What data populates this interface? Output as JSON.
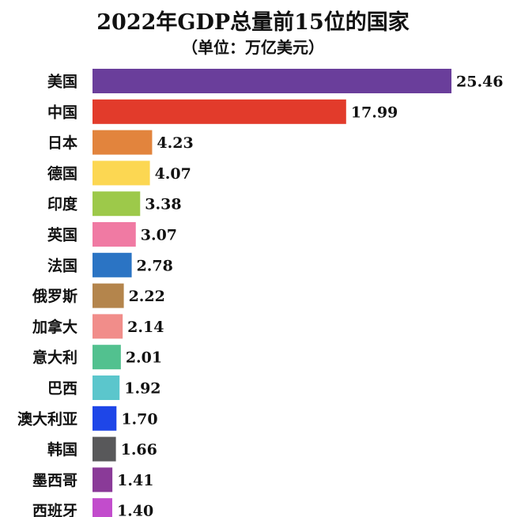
{
  "chart_data": {
    "type": "bar",
    "orientation": "horizontal",
    "title": "2022年GDP总量前15位的国家",
    "subtitle": "（单位：万亿美元）",
    "categories": [
      "美国",
      "中国",
      "日本",
      "德国",
      "印度",
      "英国",
      "法国",
      "俄罗斯",
      "加拿大",
      "意大利",
      "巴西",
      "澳大利亚",
      "韩国",
      "墨西哥",
      "西班牙"
    ],
    "values": [
      25.46,
      17.99,
      4.23,
      4.07,
      3.38,
      3.07,
      2.78,
      2.22,
      2.14,
      2.01,
      1.92,
      1.7,
      1.66,
      1.41,
      1.4
    ],
    "value_labels": [
      "25.46",
      "17.99",
      "4.23",
      "4.07",
      "3.38",
      "3.07",
      "2.78",
      "2.22",
      "2.14",
      "2.01",
      "1.92",
      "1.70",
      "1.66",
      "1.41",
      "1.40"
    ],
    "colors": [
      "#6a3e9b",
      "#e23b2b",
      "#e2843d",
      "#fcd752",
      "#9dc94a",
      "#f07aa3",
      "#2b74c4",
      "#b4854c",
      "#f18d8a",
      "#52c18f",
      "#5bc6cc",
      "#1e46e8",
      "#58585a",
      "#8a3a98",
      "#c24ccc"
    ],
    "xlim": [
      0,
      25.46
    ],
    "grid": false,
    "legend": "none"
  }
}
